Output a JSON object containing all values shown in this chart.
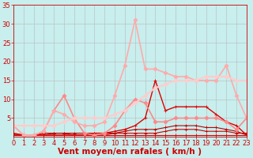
{
  "background_color": "#c8eeed",
  "grid_color": "#b0b0b0",
  "xlabel": "Vent moyen/en rafales ( km/h )",
  "xlim": [
    0,
    23
  ],
  "ylim": [
    0,
    35
  ],
  "xticks": [
    0,
    1,
    2,
    3,
    4,
    5,
    6,
    7,
    8,
    9,
    10,
    11,
    12,
    13,
    14,
    15,
    16,
    17,
    18,
    19,
    20,
    21,
    22,
    23
  ],
  "yticks": [
    5,
    10,
    15,
    20,
    25,
    30,
    35
  ],
  "series": [
    {
      "x": [
        0,
        1,
        2,
        3,
        4,
        5,
        6,
        7,
        8,
        9,
        10,
        11,
        12,
        13,
        14,
        15,
        16,
        17,
        18,
        19,
        20,
        21,
        22,
        23
      ],
      "y": [
        0.5,
        0.5,
        0.5,
        0.5,
        0.5,
        0.5,
        0.5,
        0.5,
        0.5,
        0.5,
        0.5,
        0.5,
        0.5,
        0.5,
        0.5,
        0.5,
        0.5,
        0.5,
        0.5,
        0.5,
        0.5,
        0.5,
        0.5,
        0.5
      ],
      "color": "#cc0000",
      "linewidth": 0.8,
      "marker": "+",
      "markersize": 3
    },
    {
      "x": [
        0,
        1,
        2,
        3,
        4,
        5,
        6,
        7,
        8,
        9,
        10,
        11,
        12,
        13,
        14,
        15,
        16,
        17,
        18,
        19,
        20,
        21,
        22,
        23
      ],
      "y": [
        0.5,
        0.5,
        0.5,
        0.5,
        1,
        1,
        0.5,
        0.5,
        0.5,
        0.5,
        1,
        1,
        1,
        1,
        1,
        1.5,
        2,
        2,
        2,
        1.5,
        1.5,
        1.5,
        1,
        1
      ],
      "color": "#cc0000",
      "linewidth": 0.8,
      "marker": "+",
      "markersize": 3
    },
    {
      "x": [
        0,
        1,
        2,
        3,
        4,
        5,
        6,
        7,
        8,
        9,
        10,
        11,
        12,
        13,
        14,
        15,
        16,
        17,
        18,
        19,
        20,
        21,
        22,
        23
      ],
      "y": [
        0.5,
        0.5,
        0.5,
        1,
        1,
        1,
        1,
        1,
        1,
        1,
        1,
        1.5,
        2,
        2,
        2,
        2.5,
        3,
        3,
        3,
        2.5,
        2.5,
        2,
        1.5,
        0.5
      ],
      "color": "#bb0000",
      "linewidth": 0.8,
      "marker": "+",
      "markersize": 3
    },
    {
      "x": [
        0,
        1,
        2,
        3,
        4,
        5,
        6,
        7,
        8,
        9,
        10,
        11,
        12,
        13,
        14,
        15,
        16,
        17,
        18,
        19,
        20,
        21,
        22,
        23
      ],
      "y": [
        1,
        0.5,
        0.5,
        0.5,
        0.5,
        0.5,
        0.5,
        0.5,
        1,
        1,
        1.5,
        2,
        3,
        5,
        15,
        7,
        8,
        8,
        8,
        8,
        6,
        4,
        3,
        0.5
      ],
      "color": "#dd0000",
      "linewidth": 1.0,
      "marker": "+",
      "markersize": 3
    },
    {
      "x": [
        0,
        1,
        2,
        3,
        4,
        5,
        6,
        7,
        8,
        9,
        10,
        11,
        12,
        13,
        14,
        15,
        16,
        17,
        18,
        19,
        20,
        21,
        22,
        23
      ],
      "y": [
        3,
        0.5,
        0.5,
        1.5,
        7,
        11,
        5,
        1,
        0.5,
        1,
        3,
        7,
        10,
        9,
        4,
        4,
        5,
        5,
        5,
        5,
        5,
        4,
        2,
        5
      ],
      "color": "#ff8888",
      "linewidth": 1.2,
      "marker": "D",
      "markersize": 2.5
    },
    {
      "x": [
        0,
        1,
        2,
        3,
        4,
        5,
        6,
        7,
        8,
        9,
        10,
        11,
        12,
        13,
        14,
        15,
        16,
        17,
        18,
        19,
        20,
        21,
        22,
        23
      ],
      "y": [
        3,
        0.5,
        0.5,
        1.5,
        7,
        6,
        4,
        3,
        3,
        4,
        11,
        19,
        31,
        18,
        18,
        17,
        16,
        16,
        15,
        15,
        15,
        19,
        11,
        5
      ],
      "color": "#ffaaaa",
      "linewidth": 1.2,
      "marker": "D",
      "markersize": 2.5
    },
    {
      "x": [
        0,
        1,
        2,
        3,
        4,
        5,
        6,
        7,
        8,
        9,
        10,
        11,
        12,
        13,
        14,
        15,
        16,
        17,
        18,
        19,
        20,
        21,
        22,
        23
      ],
      "y": [
        3,
        3,
        3,
        3,
        3,
        4,
        5,
        5,
        5,
        5,
        6,
        7,
        9,
        11,
        13,
        14,
        15,
        15,
        15,
        16,
        16,
        16,
        15,
        15
      ],
      "color": "#ffcccc",
      "linewidth": 1.5,
      "marker": "D",
      "markersize": 2.5
    }
  ],
  "xlabel_color": "#cc0000",
  "tick_color": "#cc0000",
  "xlabel_fontsize": 7.5,
  "tick_fontsize": 6
}
